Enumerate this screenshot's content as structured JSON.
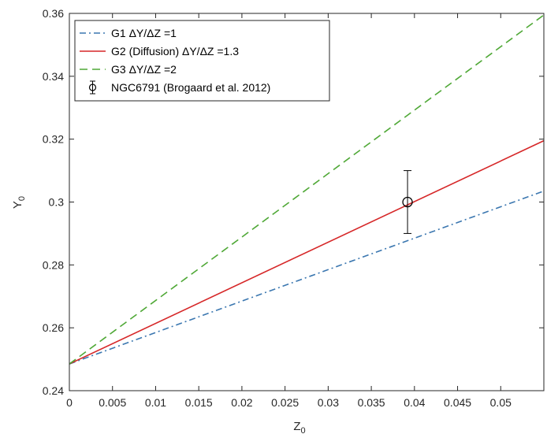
{
  "chart_data": {
    "type": "line",
    "title": "",
    "xlabel": "Z",
    "xlabel_sub": "0",
    "ylabel": "Y",
    "ylabel_sub": "0",
    "xlim": [
      0,
      0.055
    ],
    "ylim": [
      0.24,
      0.36
    ],
    "x_ticks": [
      0,
      0.005,
      0.01,
      0.015,
      0.02,
      0.025,
      0.03,
      0.035,
      0.04,
      0.045,
      0.05
    ],
    "x_tick_labels": [
      "0",
      "0.005",
      "0.01",
      "0.015",
      "0.02",
      "0.025",
      "0.03",
      "0.035",
      "0.04",
      "0.045",
      "0.05"
    ],
    "y_ticks": [
      0.24,
      0.26,
      0.28,
      0.3,
      0.32,
      0.34,
      0.36
    ],
    "y_tick_labels": [
      "0.24",
      "0.26",
      "0.28",
      "0.3",
      "0.32",
      "0.34",
      "0.36"
    ],
    "grid": false,
    "legend_position": "top-left",
    "series": [
      {
        "name": "G1 ΔY/ΔZ =1",
        "color": "#3b77b0",
        "dash": "dashdot",
        "x": [
          0,
          0.055
        ],
        "y": [
          0.2485,
          0.3035
        ]
      },
      {
        "name": "G2 (Diffusion) ΔY/ΔZ =1.3",
        "color": "#d62728",
        "dash": "solid",
        "x": [
          0,
          0.055
        ],
        "y": [
          0.2485,
          0.3195
        ]
      },
      {
        "name": "G3 ΔY/ΔZ =2",
        "color": "#4fa836",
        "dash": "dashed",
        "x": [
          0,
          0.055
        ],
        "y": [
          0.2485,
          0.3595
        ]
      }
    ],
    "points": [
      {
        "name": "NGC6791 (Brogaard et al. 2012)",
        "x": 0.0392,
        "y": 0.3,
        "yerr": 0.01,
        "marker": "circle",
        "color": "#000000"
      }
    ]
  }
}
